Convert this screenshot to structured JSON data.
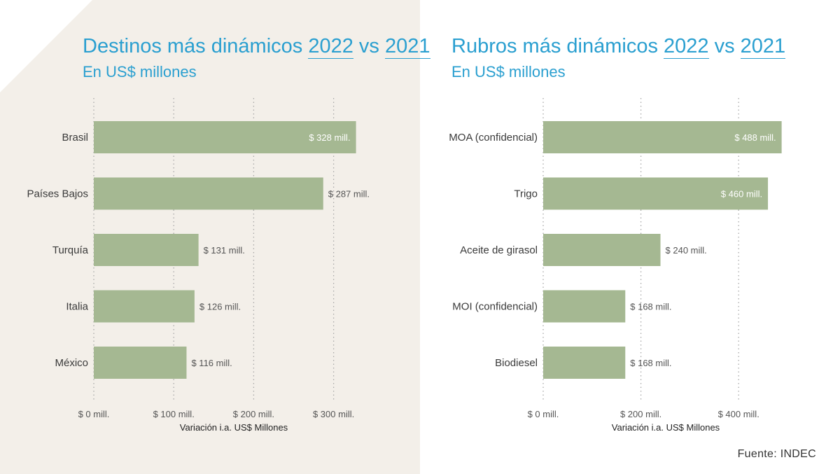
{
  "colors": {
    "bar": "#a5b892",
    "grid": "#a8a8a8",
    "title": "#2a9fd0",
    "label_inside": "#ffffff",
    "label_outside": "#555555",
    "left_background": "#f3efe9"
  },
  "source": "Fuente: INDEC",
  "chart_data": [
    {
      "type": "bar",
      "orientation": "horizontal",
      "title_parts": [
        "Destinos más dinámicos ",
        "2022",
        " vs ",
        "2021"
      ],
      "subtitle": "En US$ millones",
      "categories": [
        "Brasil",
        "Países Bajos",
        "Turquía",
        "Italia",
        "México"
      ],
      "values": [
        328,
        287,
        131,
        126,
        116
      ],
      "value_labels": [
        "$ 328 mill.",
        "$ 287 mill.",
        "$ 131 mill.",
        "$ 126 mill.",
        "$ 116 mill."
      ],
      "labels_inside": [
        true,
        false,
        false,
        false,
        false
      ],
      "xlim": [
        0,
        350
      ],
      "ticks": [
        0,
        100,
        200,
        300
      ],
      "tick_labels": [
        "$ 0 mill.",
        "$ 100 mill.",
        "$ 200 mill.",
        "$ 300 mill."
      ],
      "xlabel": "Variación i.a. US$ Millones",
      "grid": true
    },
    {
      "type": "bar",
      "orientation": "horizontal",
      "title_parts": [
        "Rubros más dinámicos ",
        "2022",
        " vs ",
        "2021"
      ],
      "subtitle": "En US$ millones",
      "categories": [
        "MOA (confidencial)",
        "Trigo",
        "Aceite de girasol",
        "MOI (confidencial)",
        "Biodiesel"
      ],
      "values": [
        488,
        460,
        240,
        168,
        168
      ],
      "value_labels": [
        "$ 488 mill.",
        "$ 460 mill.",
        "$ 240 mill.",
        "$ 168 mill.",
        "$ 168 mill."
      ],
      "labels_inside": [
        true,
        true,
        false,
        false,
        false
      ],
      "xlim": [
        0,
        520
      ],
      "ticks": [
        0,
        200,
        400
      ],
      "tick_labels": [
        "$ 0 mill.",
        "$ 200 mill.",
        "$ 400 mill."
      ],
      "xlabel": "Variación i.a. US$ Millones",
      "grid": true
    }
  ]
}
